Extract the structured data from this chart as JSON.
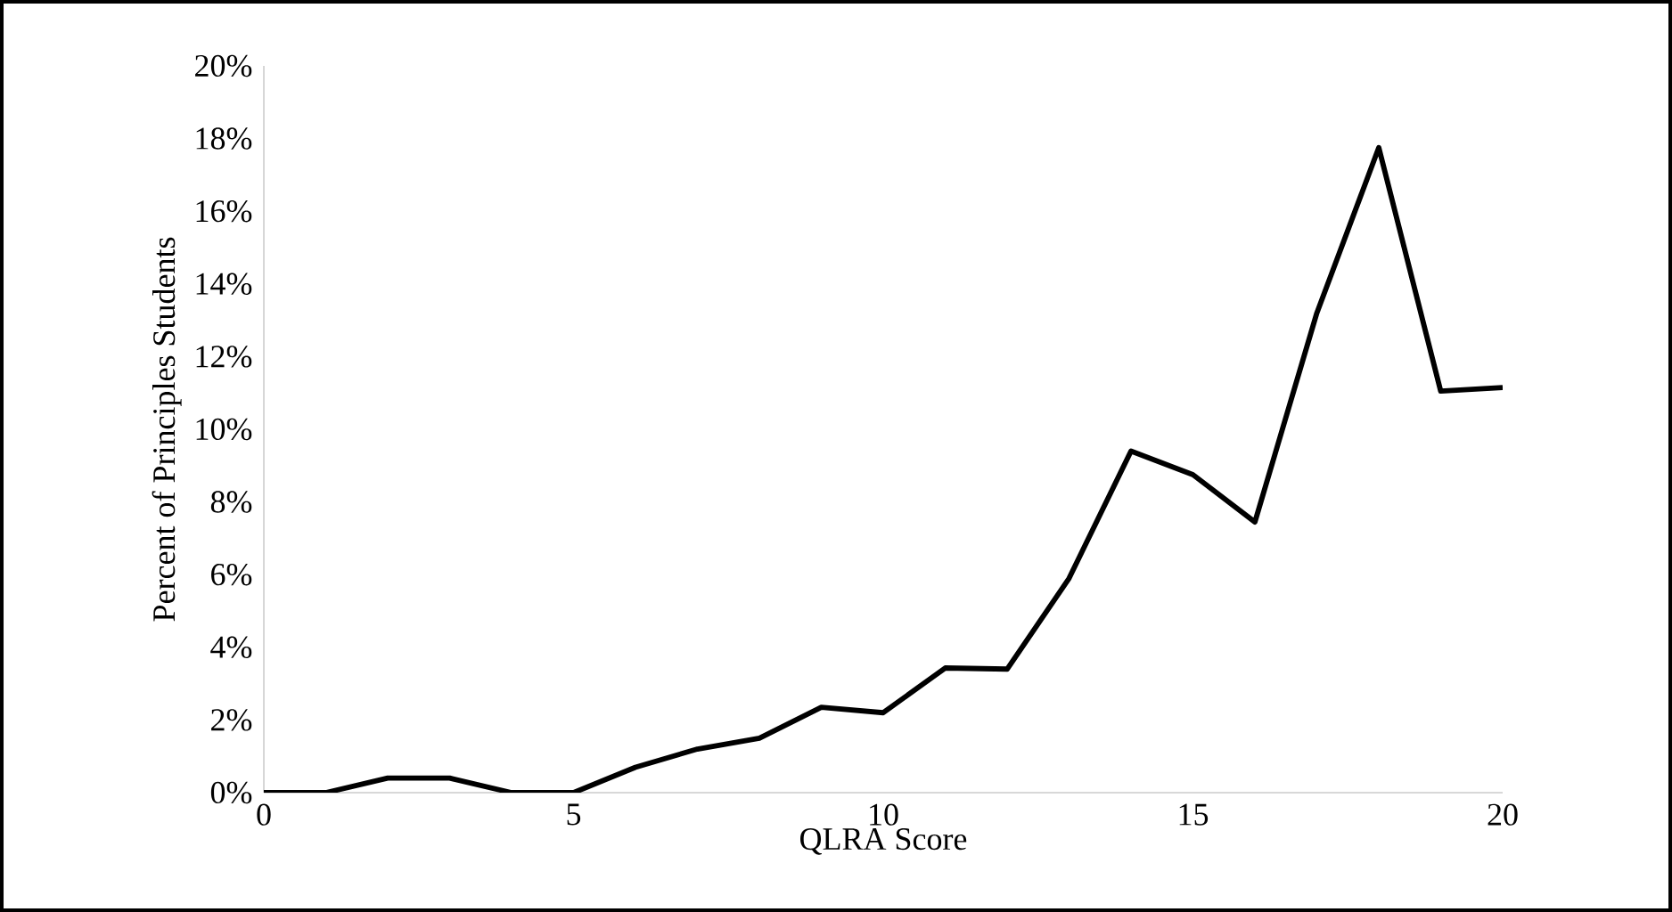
{
  "chart_data": {
    "type": "line",
    "xlabel": "QLRA Score",
    "ylabel": "Percent of Principles Students",
    "x": [
      0,
      1,
      2,
      3,
      4,
      5,
      6,
      7,
      8,
      9,
      10,
      11,
      12,
      13,
      14,
      15,
      16,
      17,
      18,
      19,
      20
    ],
    "series": [
      {
        "color": "#000000",
        "values": [
          0,
          0,
          0.4,
          0.4,
          0,
          0,
          0.7,
          1.2,
          1.5,
          2.35,
          2.2,
          3.43,
          3.4,
          5.9,
          9.4,
          8.75,
          7.45,
          13.2,
          17.75,
          11.05,
          11.15
        ]
      }
    ],
    "xlim": [
      0,
      20
    ],
    "xticks": [
      0,
      5,
      10,
      15,
      20
    ],
    "ylim": [
      0,
      20
    ],
    "yticks": [
      {
        "value": 0,
        "label": "0%"
      },
      {
        "value": 2,
        "label": "2%"
      },
      {
        "value": 4,
        "label": "4%"
      },
      {
        "value": 6,
        "label": "6%"
      },
      {
        "value": 8,
        "label": "8%"
      },
      {
        "value": 10,
        "label": "10%"
      },
      {
        "value": 12,
        "label": "12%"
      },
      {
        "value": 14,
        "label": "14%"
      },
      {
        "value": 16,
        "label": "16%"
      },
      {
        "value": 18,
        "label": "18%"
      },
      {
        "value": 20,
        "label": "20%"
      }
    ],
    "grid": false,
    "marker": "none",
    "line_style": "solid"
  }
}
